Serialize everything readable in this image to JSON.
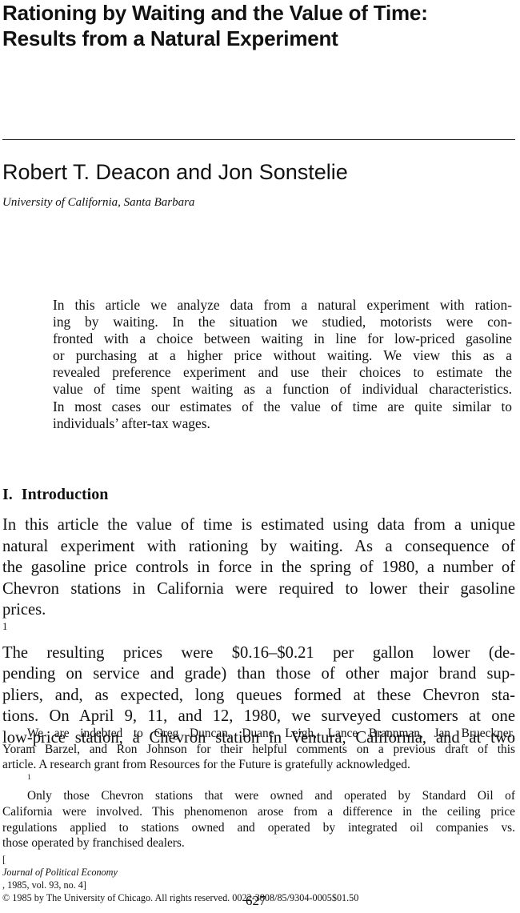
{
  "article": {
    "title_lines": [
      "Rationing by Waiting and the Value of Time:",
      "Results from a Natural Experiment"
    ],
    "authors": "Robert T. Deacon and Jon Sonstelie",
    "affiliation": "University of California, Santa Barbara"
  },
  "abstract_lines": [
    "In this article we analyze data from a natural experiment with ration-",
    "ing by waiting. In the situation we studied, motorists were con-",
    "fronted with a choice between waiting in line for low-priced gasoline",
    "or purchasing at a higher price without waiting. We view this as a",
    "revealed preference experiment and use their choices to estimate the",
    "value of time spent waiting as a function of individual characteristics.",
    "In most cases our estimates of the value of time are quite similar to",
    "individuals’ after-tax wages."
  ],
  "section": {
    "number": "I.",
    "heading": "Introduction"
  },
  "body": {
    "line1": "In this article the value of time is estimated using data from a unique",
    "line2": "natural experiment with rationing by waiting. As a consequence of",
    "line3": "the gasoline price controls in force in the spring of 1980, a number of",
    "line4": "Chevron stations in California were required to lower their gasoline",
    "line5_pre": "prices.",
    "line5_sup": "1",
    "line5_post": " The resulting prices were $0.16–$0.21 per gallon lower (de-",
    "line6": "pending on service and grade) than those of other major brand sup-",
    "line7": "pliers, and, as expected, long queues formed at these Chevron sta-",
    "line8": "tions. On April 9, 11, and 12, 1980, we surveyed customers at one",
    "line9": "low-price station, a Chevron station in Ventura, California, and at two"
  },
  "footnotes": {
    "ack_lines": [
      "We are indebted to Greg Duncan, Duane Leigh, Lance Brannman, Jan Brueckner,",
      "Yoram Barzel, and Ron Johnson for their helpful comments on a previous draft of this",
      "article. A research grant from Resources for the Future is gratefully acknowledged."
    ],
    "fn1_mark": "1",
    "fn1_lines": [
      " Only those Chevron stations that were owned and operated by Standard Oil of",
      "California were involved. This phenomenon arose from a difference in the ceiling price",
      "regulations applied to stations owned and operated by integrated oil companies vs.",
      "those operated by franchised dealers."
    ]
  },
  "citation": {
    "bracket_open": "[",
    "journal": "Journal of Political Economy",
    "details": ", 1985, vol. 93, no. 4]",
    "copyright": "© 1985 by The University of Chicago. All rights reserved. 0022-3808/85/9304-0005$01.50"
  },
  "page_number": "627"
}
